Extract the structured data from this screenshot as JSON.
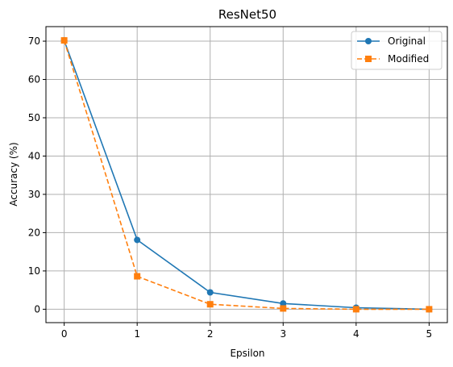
{
  "chart_data": {
    "type": "line",
    "title": "ResNet50",
    "xlabel": "Epsilon",
    "ylabel": "Accuracy (%)",
    "x": [
      0,
      1,
      2,
      3,
      4,
      5
    ],
    "xlim": [
      -0.25,
      5.25
    ],
    "ylim": [
      -3.5,
      73.8
    ],
    "xticks": [
      0,
      1,
      2,
      3,
      4,
      5
    ],
    "yticks": [
      0,
      10,
      20,
      30,
      40,
      50,
      60,
      70
    ],
    "grid": true,
    "legend_position": "top-right",
    "series": [
      {
        "name": "Original",
        "values": [
          70.2,
          18.1,
          4.4,
          1.5,
          0.4,
          0.0
        ],
        "color": "#1f77b4",
        "line_style": "solid",
        "marker": "circle"
      },
      {
        "name": "Modified",
        "values": [
          70.2,
          8.6,
          1.3,
          0.2,
          0.0,
          0.0
        ],
        "color": "#ff7f0e",
        "line_style": "dashed",
        "marker": "square"
      }
    ]
  }
}
